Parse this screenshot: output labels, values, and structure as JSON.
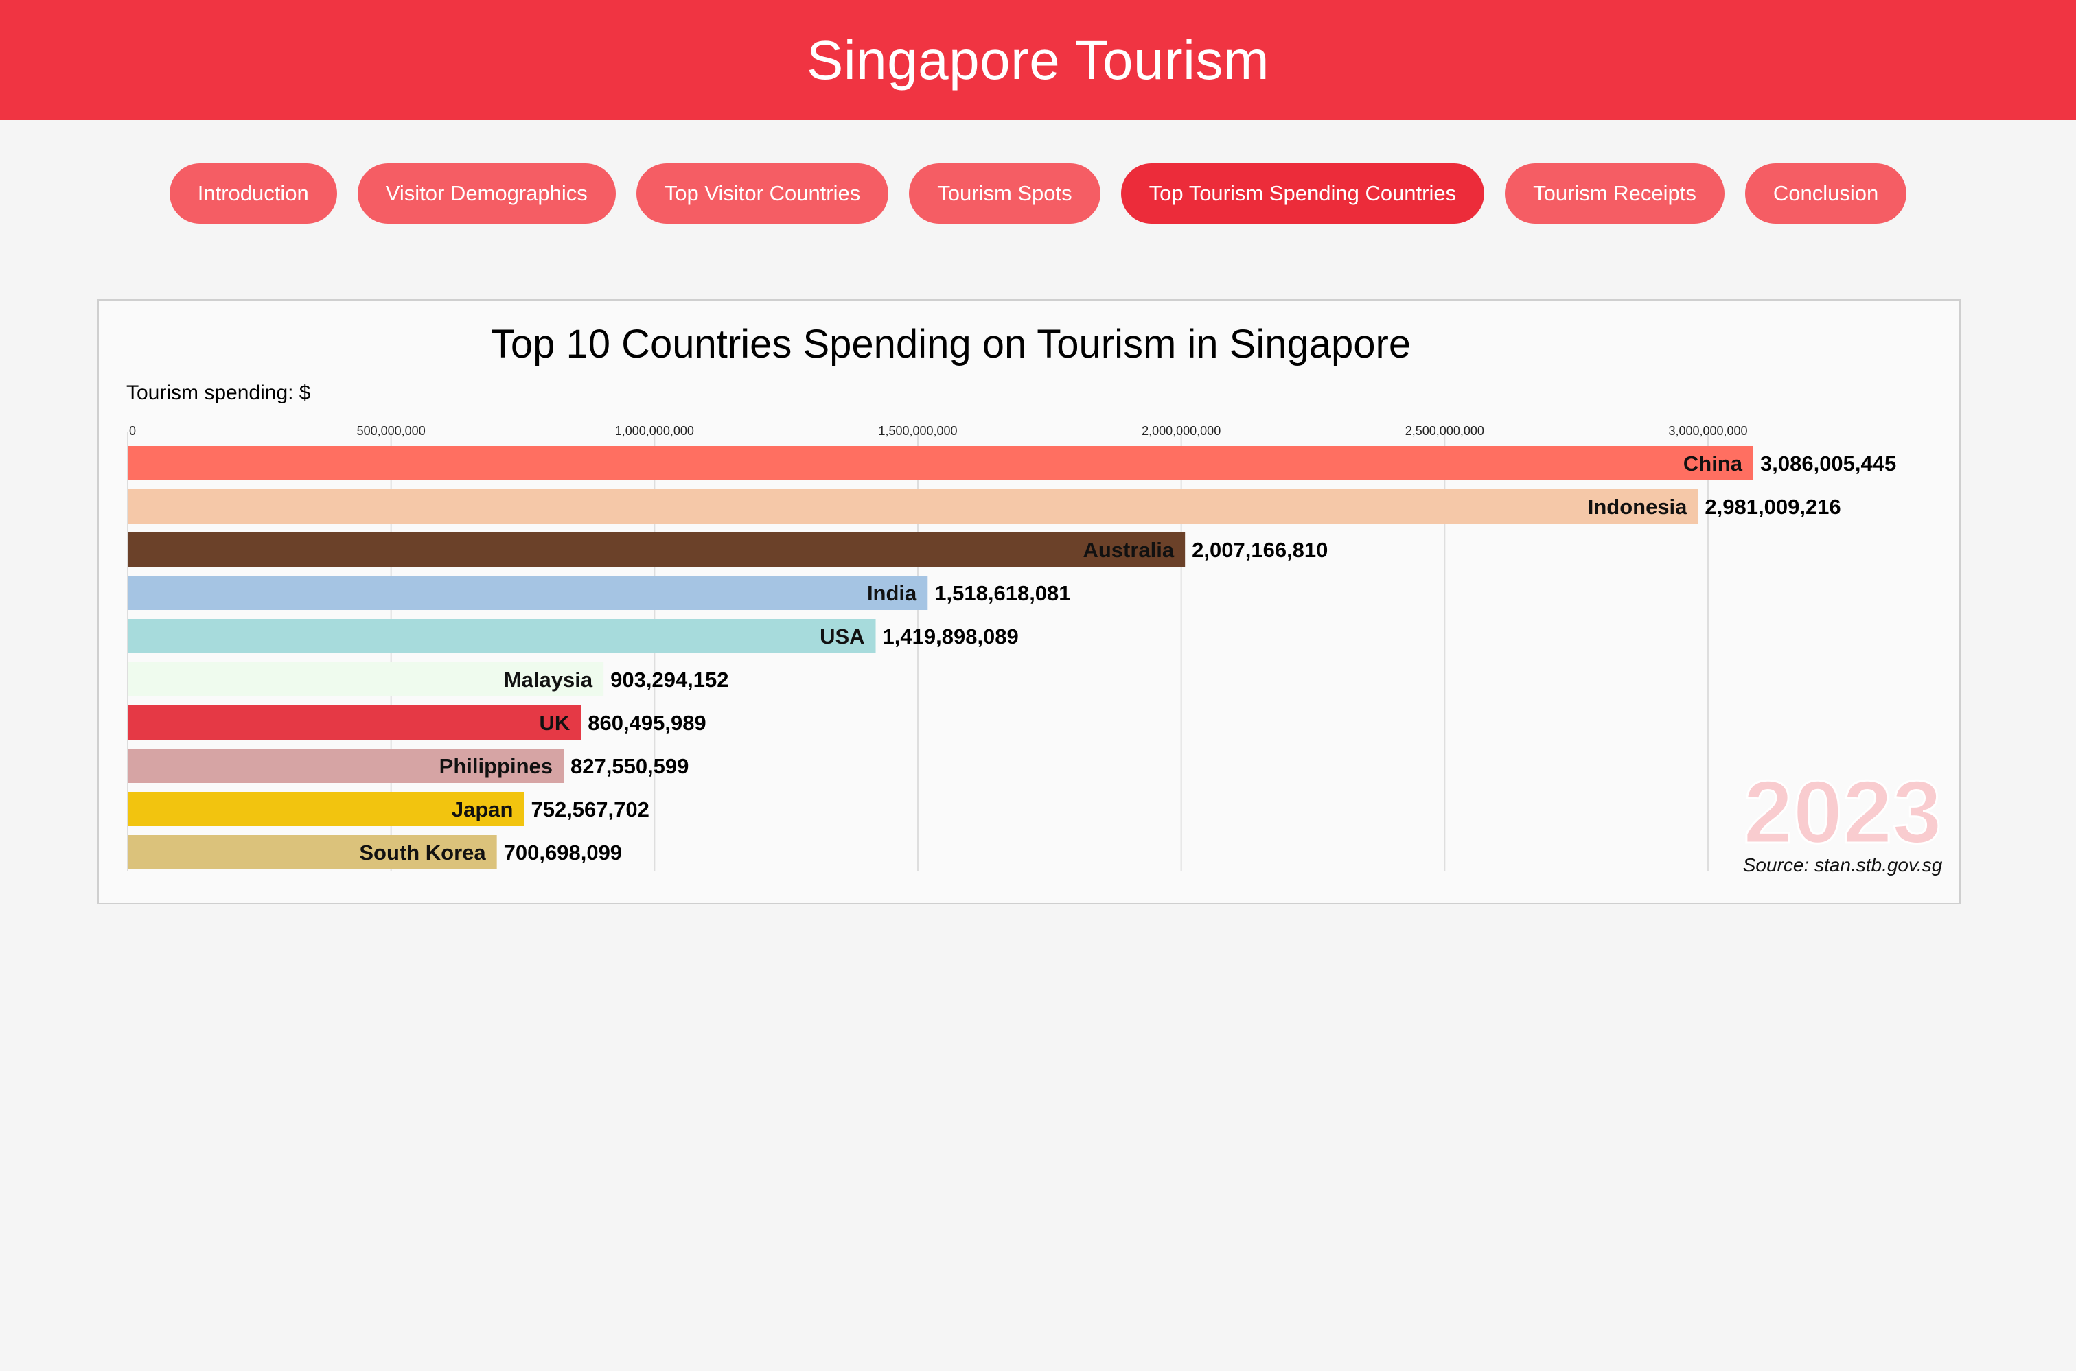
{
  "header": {
    "title": "Singapore Tourism"
  },
  "nav": {
    "items": [
      {
        "label": "Introduction",
        "active": false
      },
      {
        "label": "Visitor Demographics",
        "active": false
      },
      {
        "label": "Top Visitor Countries",
        "active": false
      },
      {
        "label": "Tourism Spots",
        "active": false
      },
      {
        "label": "Top Tourism Spending Countries",
        "active": true
      },
      {
        "label": "Tourism Receipts",
        "active": false
      },
      {
        "label": "Conclusion",
        "active": false
      }
    ]
  },
  "colors": {
    "header_bg": "#f03442",
    "nav_button": "#f55d64",
    "nav_button_active": "#ec2c3a",
    "year_watermark": "#f9cccf"
  },
  "chart_data": {
    "type": "bar",
    "orientation": "horizontal",
    "title": "Top 10 Countries Spending on Tourism in Singapore",
    "ylabel": "Tourism spending: $",
    "xlim": [
      0,
      3086005445
    ],
    "xticks": [
      {
        "value": 0,
        "label": "0"
      },
      {
        "value": 500000000,
        "label": "500,000,000"
      },
      {
        "value": 1000000000,
        "label": "1,000,000,000"
      },
      {
        "value": 1500000000,
        "label": "1,500,000,000"
      },
      {
        "value": 2000000000,
        "label": "2,000,000,000"
      },
      {
        "value": 2500000000,
        "label": "2,500,000,000"
      },
      {
        "value": 3000000000,
        "label": "3,000,000,000"
      }
    ],
    "grid": true,
    "bars": [
      {
        "category": "China",
        "value": 3086005445,
        "label": "3,086,005,445",
        "color": "#ff6f61"
      },
      {
        "category": "Indonesia",
        "value": 2981009216,
        "label": "2,981,009,216",
        "color": "#f5c8a8"
      },
      {
        "category": "Australia",
        "value": 2007166810,
        "label": "2,007,166,810",
        "color": "#6b4129"
      },
      {
        "category": "India",
        "value": 1518618081,
        "label": "1,518,618,081",
        "color": "#a5c4e3"
      },
      {
        "category": "USA",
        "value": 1419898089,
        "label": "1,419,898,089",
        "color": "#a7dbdc"
      },
      {
        "category": "Malaysia",
        "value": 903294152,
        "label": "903,294,152",
        "color": "#effbee"
      },
      {
        "category": "UK",
        "value": 860495989,
        "label": "860,495,989",
        "color": "#e53945"
      },
      {
        "category": "Philippines",
        "value": 827550599,
        "label": "827,550,599",
        "color": "#d6a4a4"
      },
      {
        "category": "Japan",
        "value": 752567702,
        "label": "752,567,702",
        "color": "#f2c40f"
      },
      {
        "category": "South Korea",
        "value": 700698099,
        "label": "700,698,099",
        "color": "#dbc27b"
      }
    ],
    "year": "2023",
    "source": "Source: stan.stb.gov.sg"
  }
}
